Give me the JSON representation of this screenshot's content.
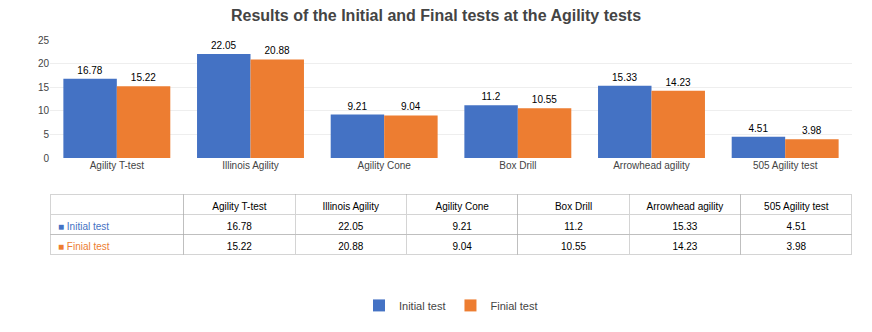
{
  "chart_data": {
    "type": "bar",
    "title": "Results of the Initial and Final tests at the Agility tests",
    "categories": [
      "Agility T-test",
      "Illinois Agility",
      "Agility Cone",
      "Box Drill",
      "Arrowhead agility",
      "505 Agility test"
    ],
    "series": [
      {
        "name": "Initial test",
        "color": "#4472C4",
        "values": [
          16.78,
          22.05,
          9.21,
          11.2,
          15.33,
          4.51
        ]
      },
      {
        "name": "Finial test",
        "color": "#ED7D31",
        "values": [
          15.22,
          20.88,
          9.04,
          10.55,
          14.23,
          3.98
        ]
      }
    ],
    "table_row_labels": [
      "■ Initial test",
      "■ Finial test"
    ],
    "ylim": [
      0,
      25
    ],
    "yticks": [
      0,
      5,
      10,
      15,
      20,
      25
    ],
    "grid": true,
    "data_labels": true,
    "legend": "bottom"
  }
}
